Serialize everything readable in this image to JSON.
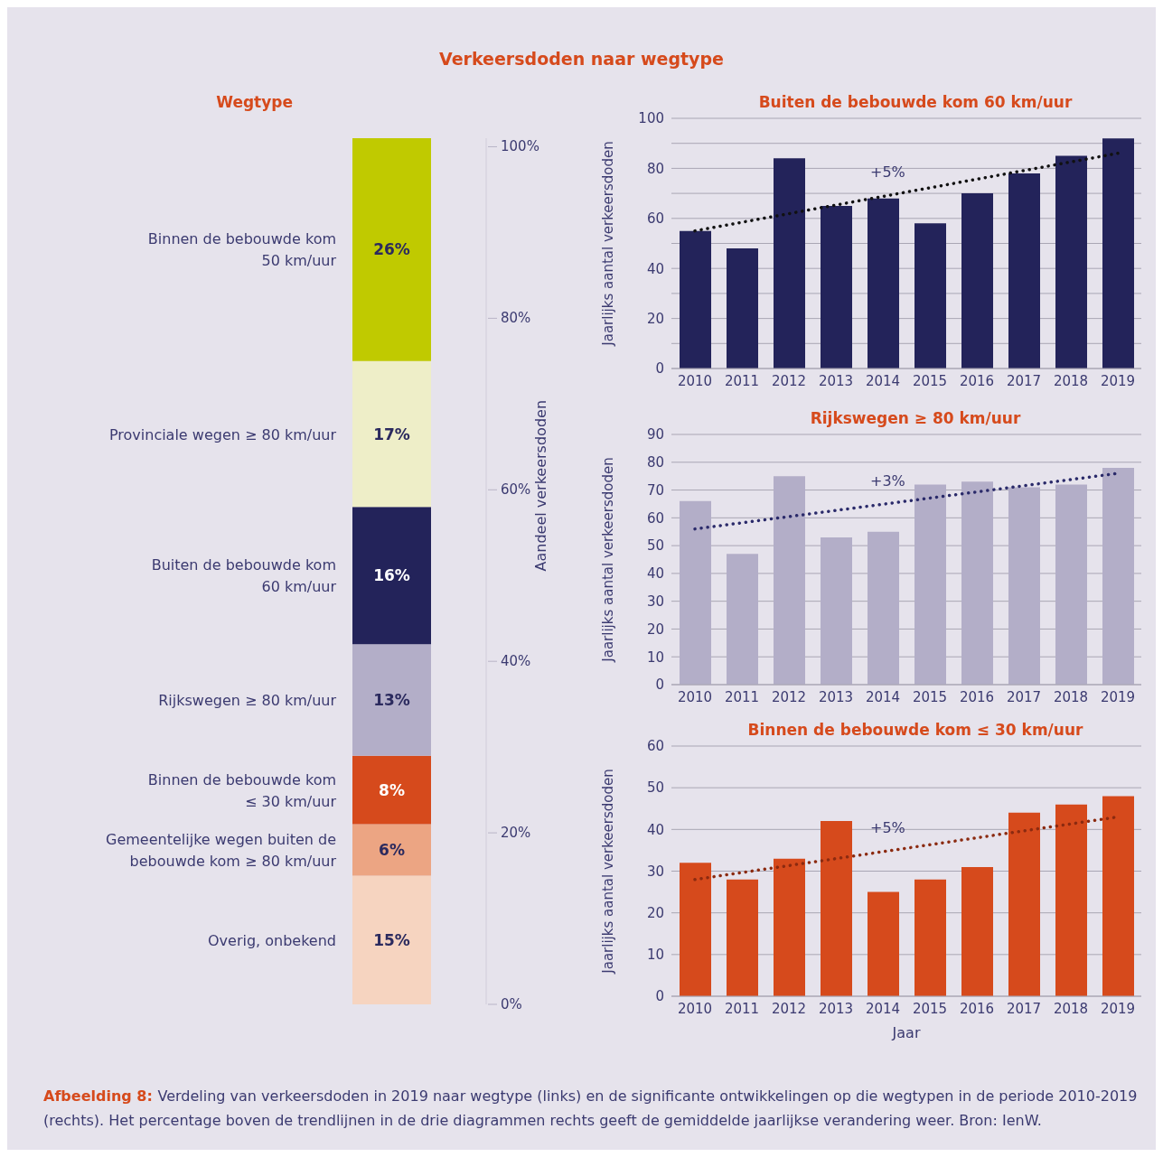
{
  "chart_data": [
    {
      "type": "bar",
      "title": "Wegtype",
      "stacked": true,
      "categories": [
        null
      ],
      "ylabel": "Aandeel verkeersdoden",
      "ylim": [
        0,
        101
      ],
      "legend": false,
      "yticks": [
        {
          "value": 0,
          "label": "0%"
        },
        {
          "value": 20,
          "label": "20%"
        },
        {
          "value": 40,
          "label": "40%"
        },
        {
          "value": 60,
          "label": "60%"
        },
        {
          "value": 80,
          "label": "80%"
        },
        {
          "value": 100,
          "label": "100%"
        }
      ],
      "series": [
        {
          "name": "Overig, onbekend",
          "color": "#f6d4c0",
          "values": [
            15
          ],
          "value_labels": [
            "15%"
          ]
        },
        {
          "name": "Gemeentelijke wegen buiten de bebouwde kom ≥ 80 km/uur",
          "color": "#eca583",
          "values": [
            6
          ],
          "value_labels": [
            "6%"
          ]
        },
        {
          "name": "Binnen de bebouwde kom ≤ 30 km/uur",
          "color": "#d64a1c",
          "values": [
            8
          ],
          "value_labels": [
            "8%"
          ]
        },
        {
          "name": "Rijkswegen ≥ 80 km/uur",
          "color": "#b3aec8",
          "values": [
            13
          ],
          "value_labels": [
            "13%"
          ]
        },
        {
          "name": "Buiten de bebouwde kom 60 km/uur",
          "color": "#23235a",
          "values": [
            16
          ],
          "value_labels": [
            "16%"
          ]
        },
        {
          "name": "Provinciale wegen ≥ 80 km/uur",
          "color": "#eeeec8",
          "values": [
            17
          ],
          "value_labels": [
            "17%"
          ]
        },
        {
          "name": "Binnen de bebouwde kom 50 km/uur",
          "color": "#c0ca00",
          "values": [
            26
          ],
          "value_labels": [
            "26%"
          ]
        }
      ],
      "annotations": [
        "Verkeersdoden naar wegtype",
        "Afbeelding 8:",
        "Verdeling van verkeersdoden in 2019 naar wegtype (links) en de significante ontwikkelingen op die wegtypen in de periode 2010-2019 (rechts). Het percentage boven de trendlijnen in de drie diagrammen rechts geeft de gemiddelde jaarlijkse verandering weer. Bron: IenW."
      ]
    },
    {
      "type": "bar",
      "title": "Buiten de bebouwde kom 60 km/uur",
      "ylabel": "Jaarlijks aantal verkeersdoden",
      "categories": [
        "2010",
        "2011",
        "2012",
        "2013",
        "2014",
        "2015",
        "2016",
        "2017",
        "2018",
        "2019"
      ],
      "ylim": [
        0,
        100
      ],
      "grid": "y",
      "legend": false,
      "yticks": [
        0,
        {
          "value": 10,
          "label": null
        },
        20,
        {
          "value": 30,
          "label": null
        },
        40,
        {
          "value": 50,
          "label": null
        },
        60,
        {
          "value": 70,
          "label": null
        },
        80,
        {
          "value": 90,
          "label": null
        },
        100
      ],
      "series": [
        {
          "type": "bar",
          "color": "#23235a",
          "values": [
            55,
            48,
            84,
            65,
            68,
            58,
            70,
            78,
            85,
            92
          ]
        },
        {
          "type": "line",
          "color": "#111111",
          "line_style": "dotted",
          "values": [
            55,
            null,
            null,
            null,
            null,
            null,
            null,
            null,
            null,
            86
          ]
        }
      ],
      "annotations": [
        "+5%"
      ]
    },
    {
      "type": "bar",
      "title": "Rijkswegen ≥ 80 km/uur",
      "ylabel": "Jaarlijks aantal verkeersdoden",
      "categories": [
        "2010",
        "2011",
        "2012",
        "2013",
        "2014",
        "2015",
        "2016",
        "2017",
        "2018",
        "2019"
      ],
      "ylim": [
        0,
        90
      ],
      "grid": "y",
      "legend": false,
      "yticks": [
        0,
        10,
        20,
        30,
        40,
        50,
        60,
        70,
        80,
        90
      ],
      "series": [
        {
          "type": "bar",
          "color": "#b3aec8",
          "values": [
            66,
            47,
            75,
            53,
            55,
            72,
            73,
            71,
            72,
            78
          ]
        },
        {
          "type": "line",
          "color": "#2a2a6a",
          "line_style": "dotted",
          "values": [
            56,
            null,
            null,
            null,
            null,
            null,
            null,
            null,
            null,
            76
          ]
        }
      ],
      "annotations": [
        "+3%"
      ]
    },
    {
      "type": "bar",
      "title": "Binnen de bebouwde kom ≤ 30 km/uur",
      "ylabel": "Jaarlijks aantal verkeersdoden",
      "xlabel": "Jaar",
      "categories": [
        "2010",
        "2011",
        "2012",
        "2013",
        "2014",
        "2015",
        "2016",
        "2017",
        "2018",
        "2019"
      ],
      "ylim": [
        0,
        60
      ],
      "grid": "y",
      "legend": false,
      "yticks": [
        0,
        10,
        20,
        30,
        40,
        50,
        60
      ],
      "series": [
        {
          "type": "bar",
          "color": "#d64a1c",
          "values": [
            32,
            28,
            33,
            42,
            25,
            28,
            31,
            44,
            46,
            48
          ]
        },
        {
          "type": "line",
          "color": "#8b2a10",
          "line_style": "dotted",
          "values": [
            28,
            null,
            null,
            null,
            null,
            null,
            null,
            null,
            null,
            43
          ]
        }
      ],
      "annotations": [
        "+5%"
      ]
    }
  ]
}
